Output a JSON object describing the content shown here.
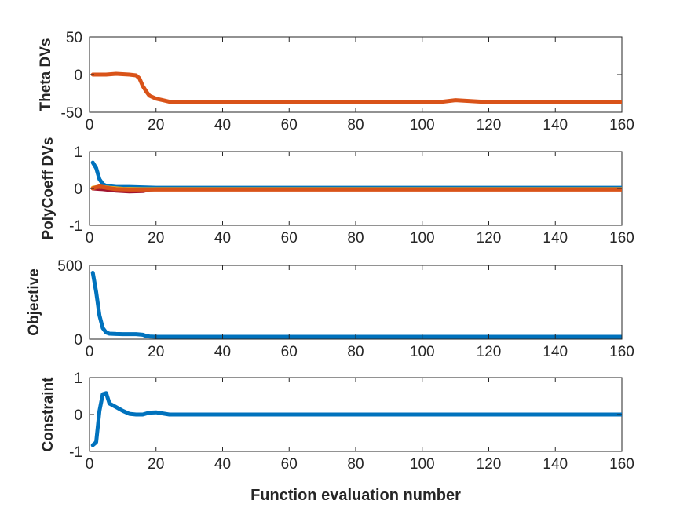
{
  "figure": {
    "xlabel": "Function evaluation number"
  },
  "chart_data": [
    {
      "type": "line",
      "ylabel": "Theta DVs",
      "xlim": [
        0,
        160
      ],
      "ylim": [
        -50,
        50
      ],
      "xticks": [
        0,
        20,
        40,
        60,
        80,
        100,
        120,
        140,
        160
      ],
      "yticks": [
        -50,
        0,
        50
      ],
      "grid": false,
      "series": [
        {
          "color": "#D95319",
          "x": [
            1,
            5,
            8,
            12,
            14,
            15,
            16,
            17,
            18,
            20,
            22,
            24,
            26,
            40,
            60,
            80,
            100,
            106,
            110,
            114,
            118,
            130,
            160
          ],
          "y": [
            0,
            0,
            1,
            0,
            -1,
            -5,
            -15,
            -22,
            -28,
            -32,
            -34,
            -36,
            -36,
            -36,
            -36,
            -36,
            -36,
            -36,
            -34,
            -35,
            -36,
            -36,
            -36
          ]
        }
      ]
    },
    {
      "type": "line",
      "ylabel": "PolyCoeff DVs",
      "xlim": [
        0,
        160
      ],
      "ylim": [
        -1,
        1
      ],
      "xticks": [
        0,
        20,
        40,
        60,
        80,
        100,
        120,
        140,
        160
      ],
      "yticks": [
        -1,
        0,
        1
      ],
      "grid": false,
      "series": [
        {
          "color": "#0072BD",
          "x": [
            1,
            2,
            3,
            4,
            5,
            8,
            12,
            16,
            20,
            40,
            80,
            120,
            160
          ],
          "y": [
            0.7,
            0.55,
            0.25,
            0.12,
            0.07,
            0.04,
            0.04,
            0.03,
            0.02,
            0.02,
            0.02,
            0.02,
            0.02
          ]
        },
        {
          "color": "#A2142F",
          "x": [
            1,
            4,
            8,
            12,
            16,
            18,
            20,
            40,
            160
          ],
          "y": [
            0,
            -0.02,
            -0.06,
            -0.08,
            -0.07,
            -0.03,
            -0.02,
            -0.02,
            -0.02
          ]
        },
        {
          "color": "#EDB120",
          "x": [
            1,
            3,
            6,
            10,
            16,
            20,
            160
          ],
          "y": [
            0.02,
            0.05,
            0.02,
            -0.01,
            -0.02,
            -0.02,
            -0.02
          ]
        },
        {
          "color": "#D95319",
          "x": [
            1,
            3,
            5,
            8,
            12,
            16,
            20,
            40,
            160
          ],
          "y": [
            0.0,
            0.06,
            0.02,
            -0.02,
            -0.03,
            -0.03,
            -0.03,
            -0.03,
            -0.03
          ]
        }
      ]
    },
    {
      "type": "line",
      "ylabel": "Objective",
      "xlim": [
        0,
        160
      ],
      "ylim": [
        0,
        500
      ],
      "xticks": [
        0,
        20,
        40,
        60,
        80,
        100,
        120,
        140,
        160
      ],
      "yticks": [
        0,
        500
      ],
      "grid": false,
      "series": [
        {
          "color": "#0072BD",
          "x": [
            1,
            2,
            3,
            4,
            5,
            6,
            8,
            10,
            14,
            16,
            17,
            18,
            20,
            40,
            80,
            120,
            160
          ],
          "y": [
            450,
            320,
            160,
            75,
            45,
            37,
            35,
            34,
            34,
            30,
            22,
            18,
            16,
            16,
            16,
            16,
            16
          ]
        }
      ]
    },
    {
      "type": "line",
      "ylabel": "Constraint",
      "xlim": [
        0,
        160
      ],
      "ylim": [
        -1,
        1
      ],
      "xticks": [
        0,
        20,
        40,
        60,
        80,
        100,
        120,
        140,
        160
      ],
      "yticks": [
        -1,
        0,
        1
      ],
      "grid": false,
      "series": [
        {
          "color": "#0072BD",
          "x": [
            1,
            2,
            3,
            4,
            5,
            6,
            8,
            10,
            12,
            14,
            16,
            18,
            20,
            22,
            24,
            30,
            40,
            80,
            120,
            160
          ],
          "y": [
            -0.83,
            -0.75,
            0.1,
            0.55,
            0.58,
            0.3,
            0.2,
            0.1,
            0.02,
            0.0,
            0.0,
            0.05,
            0.06,
            0.03,
            0.0,
            0.0,
            0.0,
            0.0,
            0.0,
            0.0
          ]
        }
      ]
    }
  ]
}
